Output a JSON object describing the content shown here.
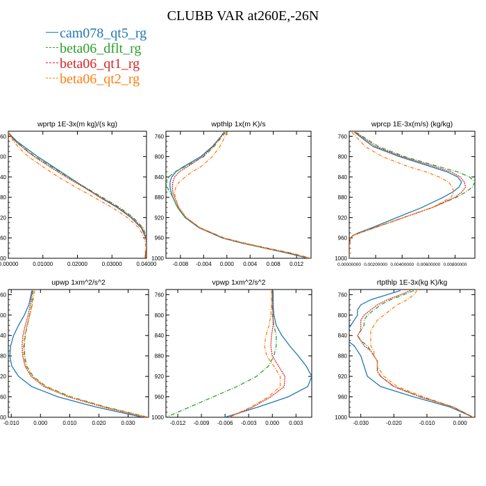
{
  "title": "CLUBB VAR at260E,-26N",
  "legend": [
    {
      "label": "cam078_qt5_rg",
      "color": "#1f77b4",
      "dash": ""
    },
    {
      "label": "beta06_dflt_rg",
      "color": "#2ca02c",
      "dash": "6,2,1,2"
    },
    {
      "label": "beta06_qt1_rg",
      "color": "#d62728",
      "dash": "2,1"
    },
    {
      "label": "beta06_qt2_rg",
      "color": "#ff7f0e",
      "dash": "5,2,1,2"
    }
  ],
  "chart_data": [
    {
      "type": "line",
      "title": "wprtp   1E-3x(m kg)/(s kg)",
      "xlim": [
        0,
        0.04
      ],
      "ylim": [
        1000,
        750
      ],
      "xticks": [
        0,
        0.01,
        0.02,
        0.03,
        0.04
      ],
      "xticklabels": [
        "0.00000",
        "0.01000",
        "0.02000",
        "0.03000",
        "0.04000"
      ],
      "yticks": [
        760,
        800,
        840,
        880,
        920,
        960,
        1000
      ],
      "y": [
        752,
        760,
        770,
        780,
        790,
        800,
        820,
        840,
        860,
        880,
        900,
        920,
        940,
        960,
        970,
        980,
        990,
        1000
      ],
      "series": [
        {
          "name": "cam078_qt5_rg",
          "values": [
            0.0,
            0.001,
            0.0025,
            0.0045,
            0.0065,
            0.0085,
            0.013,
            0.0175,
            0.022,
            0.0265,
            0.0315,
            0.0355,
            0.0385,
            0.0398,
            0.04,
            0.04,
            0.0398,
            0.0396
          ]
        },
        {
          "name": "beta06_dflt_rg",
          "values": [
            0.0,
            0.0008,
            0.0022,
            0.004,
            0.0058,
            0.0078,
            0.0125,
            0.0172,
            0.0222,
            0.0272,
            0.0322,
            0.0362,
            0.039,
            0.0401,
            0.0403,
            0.0402,
            0.04,
            0.0398
          ]
        },
        {
          "name": "beta06_qt1_rg",
          "values": [
            0.0,
            0.0008,
            0.002,
            0.0038,
            0.0055,
            0.0075,
            0.012,
            0.0167,
            0.0217,
            0.0267,
            0.0318,
            0.0358,
            0.0387,
            0.0399,
            0.0401,
            0.04,
            0.0398,
            0.0396
          ]
        },
        {
          "name": "beta06_qt2_rg",
          "values": [
            0.0,
            0.0006,
            0.0015,
            0.0028,
            0.0042,
            0.0058,
            0.01,
            0.0145,
            0.0195,
            0.0248,
            0.03,
            0.0345,
            0.0378,
            0.0394,
            0.0397,
            0.0398,
            0.0396,
            0.0394
          ]
        }
      ]
    },
    {
      "type": "line",
      "title": "wpthlp   1x(m K)/s",
      "xlim": [
        -0.0105,
        0.0145
      ],
      "ylim": [
        1000,
        750
      ],
      "xticks": [
        -0.008,
        -0.004,
        0,
        0.004,
        0.008,
        0.012
      ],
      "xticklabels": [
        "-0.008",
        "-0.004",
        "0.000",
        "0.004",
        "0.008",
        "0.012"
      ],
      "yticks": [
        760,
        800,
        840,
        880,
        920,
        960,
        1000
      ],
      "y": [
        752,
        760,
        780,
        800,
        820,
        830,
        840,
        850,
        860,
        870,
        880,
        900,
        920,
        940,
        960,
        970,
        980,
        990,
        1000
      ],
      "series": [
        {
          "name": "cam078_qt5_rg",
          "values": [
            -0.0005,
            -0.001,
            -0.0025,
            -0.0045,
            -0.0075,
            -0.0088,
            -0.0095,
            -0.0098,
            -0.0098,
            -0.0096,
            -0.0093,
            -0.0085,
            -0.0072,
            -0.0048,
            -0.0008,
            0.0025,
            0.0065,
            0.0105,
            0.014
          ]
        },
        {
          "name": "beta06_dflt_rg",
          "values": [
            -0.0002,
            -0.0008,
            -0.0022,
            -0.004,
            -0.0072,
            -0.009,
            -0.01,
            -0.0105,
            -0.0103,
            -0.0098,
            -0.0093,
            -0.0085,
            -0.0071,
            -0.0046,
            -0.0005,
            0.003,
            0.007,
            0.0112,
            0.0145
          ]
        },
        {
          "name": "beta06_qt1_rg",
          "values": [
            -0.0004,
            -0.001,
            -0.0024,
            -0.0042,
            -0.0068,
            -0.0082,
            -0.009,
            -0.0093,
            -0.0094,
            -0.0093,
            -0.009,
            -0.0083,
            -0.007,
            -0.0047,
            -0.0007,
            0.0027,
            0.0067,
            0.0108,
            0.0142
          ]
        },
        {
          "name": "beta06_qt2_rg",
          "values": [
            0.0,
            -0.0003,
            -0.0012,
            -0.0025,
            -0.0045,
            -0.006,
            -0.0072,
            -0.0082,
            -0.0088,
            -0.009,
            -0.0089,
            -0.0083,
            -0.007,
            -0.0046,
            -0.0006,
            0.0028,
            0.0068,
            0.011,
            0.0143
          ]
        }
      ]
    },
    {
      "type": "line",
      "title": "wprcp   1E-3x(m/s) (kg/kg)",
      "xlim": [
        0,
        0.0095
      ],
      "ylim": [
        1000,
        750
      ],
      "xticks": [
        0,
        0.002,
        0.004,
        0.006,
        0.008
      ],
      "xticklabels": [
        "0.00000000",
        "0.00200000",
        "0.00400000",
        "0.00600000",
        "0.00800000"
      ],
      "yticks": [
        760,
        800,
        840,
        880,
        920,
        960,
        1000
      ],
      "y": [
        752,
        760,
        780,
        800,
        820,
        830,
        840,
        850,
        860,
        870,
        880,
        900,
        920,
        940,
        950,
        955,
        960,
        970,
        980,
        990,
        1000
      ],
      "series": [
        {
          "name": "cam078_qt5_rg",
          "values": [
            0.0004,
            0.0008,
            0.0018,
            0.0038,
            0.0062,
            0.0074,
            0.0082,
            0.0085,
            0.0083,
            0.0078,
            0.0071,
            0.0055,
            0.0036,
            0.0017,
            0.0007,
            0.0003,
            0.0001,
            3e-05,
            1e-05,
            0.0,
            0.0
          ]
        },
        {
          "name": "beta06_dflt_rg",
          "values": [
            0.0005,
            0.001,
            0.0022,
            0.0042,
            0.0068,
            0.0082,
            0.0091,
            0.0095,
            0.0093,
            0.0088,
            0.0081,
            0.0063,
            0.0041,
            0.0019,
            0.0008,
            0.0003,
            0.0001,
            3e-05,
            1e-05,
            0.0,
            0.0
          ]
        },
        {
          "name": "beta06_qt1_rg",
          "values": [
            0.0004,
            0.0009,
            0.002,
            0.004,
            0.0065,
            0.0077,
            0.0084,
            0.0087,
            0.0088,
            0.0085,
            0.008,
            0.0063,
            0.0041,
            0.0019,
            0.0008,
            0.0003,
            0.0001,
            3e-05,
            1e-05,
            0.0,
            0.0
          ]
        },
        {
          "name": "beta06_qt2_rg",
          "values": [
            0.0002,
            0.0005,
            0.0012,
            0.0025,
            0.0045,
            0.0058,
            0.0068,
            0.0075,
            0.0078,
            0.0079,
            0.0077,
            0.0063,
            0.0041,
            0.0019,
            0.0008,
            0.0003,
            0.0001,
            3e-05,
            1e-05,
            0.0,
            0.0
          ]
        }
      ]
    },
    {
      "type": "line",
      "title": "upwp   1xm^2/s^2",
      "xlim": [
        -0.011,
        0.037
      ],
      "ylim": [
        1000,
        750
      ],
      "xticks": [
        -0.01,
        0,
        0.01,
        0.02,
        0.03
      ],
      "xticklabels": [
        "-0.010",
        "0.000",
        "0.010",
        "0.020",
        "0.030"
      ],
      "yticks": [
        760,
        800,
        840,
        880,
        920,
        960,
        1000
      ],
      "y": [
        752,
        760,
        780,
        800,
        820,
        840,
        860,
        880,
        900,
        920,
        940,
        960,
        980,
        1000
      ],
      "series": [
        {
          "name": "cam078_qt5_rg",
          "values": [
            -0.003,
            -0.0032,
            -0.004,
            -0.0055,
            -0.0075,
            -0.0092,
            -0.0102,
            -0.0105,
            -0.0098,
            -0.0075,
            -0.003,
            0.006,
            0.019,
            0.035
          ]
        },
        {
          "name": "beta06_dflt_rg",
          "values": [
            -0.0025,
            -0.0027,
            -0.003,
            -0.0037,
            -0.0045,
            -0.0052,
            -0.0055,
            -0.0054,
            -0.0047,
            -0.0025,
            0.002,
            0.0105,
            0.0225,
            0.037
          ]
        },
        {
          "name": "beta06_qt1_rg",
          "values": [
            -0.0028,
            -0.003,
            -0.0035,
            -0.0042,
            -0.0052,
            -0.006,
            -0.0063,
            -0.0061,
            -0.0053,
            -0.0032,
            0.0012,
            0.0095,
            0.0215,
            0.036
          ]
        },
        {
          "name": "beta06_qt2_rg",
          "values": [
            -0.002,
            -0.0022,
            -0.0028,
            -0.0036,
            -0.0046,
            -0.0054,
            -0.0058,
            -0.0057,
            -0.005,
            -0.0029,
            0.0016,
            0.01,
            0.022,
            0.0365
          ]
        }
      ]
    },
    {
      "type": "line",
      "title": "vpwp   1xm^2/s^2",
      "xlim": [
        -0.0135,
        0.005
      ],
      "ylim": [
        1000,
        750
      ],
      "xticks": [
        -0.012,
        -0.009,
        -0.006,
        -0.003,
        0,
        0.003
      ],
      "xticklabels": [
        "-0.012",
        "-0.009",
        "-0.006",
        "-0.003",
        "0.000",
        "0.003"
      ],
      "yticks": [
        760,
        800,
        840,
        880,
        920,
        960,
        1000
      ],
      "y": [
        752,
        760,
        780,
        800,
        820,
        840,
        860,
        880,
        900,
        920,
        940,
        960,
        980,
        1000
      ],
      "series": [
        {
          "name": "cam078_qt5_rg",
          "values": [
            0.0001,
            0.0001,
            0.0001,
            0.0002,
            0.0005,
            0.0012,
            0.0022,
            0.0033,
            0.0043,
            0.005,
            0.0045,
            0.002,
            -0.0018,
            -0.006
          ]
        },
        {
          "name": "beta06_dflt_rg",
          "values": [
            0.0,
            0.0,
            0.0,
            0.0,
            0.0002,
            0.0005,
            0.0005,
            0.0002,
            -0.0005,
            -0.002,
            -0.0045,
            -0.0075,
            -0.0105,
            -0.0135
          ]
        },
        {
          "name": "beta06_qt1_rg",
          "values": [
            0.0,
            0.0,
            0.0,
            0.0001,
            0.0001,
            -0.0001,
            -0.0002,
            0.0,
            0.0008,
            0.0016,
            0.0015,
            -0.0002,
            -0.0025,
            -0.0055
          ]
        },
        {
          "name": "beta06_qt2_rg",
          "values": [
            -0.0001,
            -0.0001,
            -0.0001,
            -0.0002,
            -0.0004,
            -0.0008,
            -0.001,
            -0.0007,
            0.0002,
            0.001,
            0.001,
            -0.0005,
            -0.0027,
            -0.0055
          ]
        }
      ]
    },
    {
      "type": "line",
      "title": "rtpthlp   1E-3x(kg K)/kg",
      "xlim": [
        -0.0335,
        0.0045
      ],
      "ylim": [
        1000,
        750
      ],
      "xticks": [
        -0.03,
        -0.02,
        -0.01,
        0
      ],
      "xticklabels": [
        "-0.030",
        "-0.020",
        "-0.010",
        "0.000"
      ],
      "yticks": [
        760,
        800,
        840,
        880,
        920,
        960,
        1000
      ],
      "y": [
        752,
        760,
        770,
        780,
        790,
        800,
        810,
        820,
        830,
        840,
        850,
        860,
        870,
        880,
        890,
        900,
        910,
        920,
        940,
        960,
        980,
        1000
      ],
      "series": [
        {
          "name": "cam078_qt5_rg",
          "values": [
            -0.018,
            -0.022,
            -0.027,
            -0.03,
            -0.031,
            -0.031,
            -0.032,
            -0.033,
            -0.034,
            -0.035,
            -0.034,
            -0.032,
            -0.031,
            -0.03,
            -0.0295,
            -0.029,
            -0.0285,
            -0.028,
            -0.024,
            -0.014,
            -0.003,
            0.004
          ]
        },
        {
          "name": "beta06_dflt_rg",
          "values": [
            -0.014,
            -0.017,
            -0.021,
            -0.024,
            -0.026,
            -0.028,
            -0.029,
            -0.029,
            -0.03,
            -0.031,
            -0.03,
            -0.028,
            -0.027,
            -0.026,
            -0.025,
            -0.025,
            -0.025,
            -0.024,
            -0.02,
            -0.012,
            -0.002,
            0.004
          ]
        },
        {
          "name": "beta06_qt1_rg",
          "values": [
            -0.015,
            -0.018,
            -0.022,
            -0.025,
            -0.027,
            -0.029,
            -0.03,
            -0.03,
            -0.03,
            -0.031,
            -0.03,
            -0.029,
            -0.027,
            -0.026,
            -0.025,
            -0.025,
            -0.025,
            -0.024,
            -0.02,
            -0.012,
            -0.002,
            0.004
          ]
        },
        {
          "name": "beta06_qt2_rg",
          "values": [
            -0.013,
            -0.014,
            -0.016,
            -0.019,
            -0.021,
            -0.023,
            -0.025,
            -0.026,
            -0.027,
            -0.027,
            -0.027,
            -0.027,
            -0.026,
            -0.026,
            -0.025,
            -0.025,
            -0.024,
            -0.023,
            -0.019,
            -0.011,
            -0.002,
            0.004
          ]
        }
      ]
    }
  ]
}
